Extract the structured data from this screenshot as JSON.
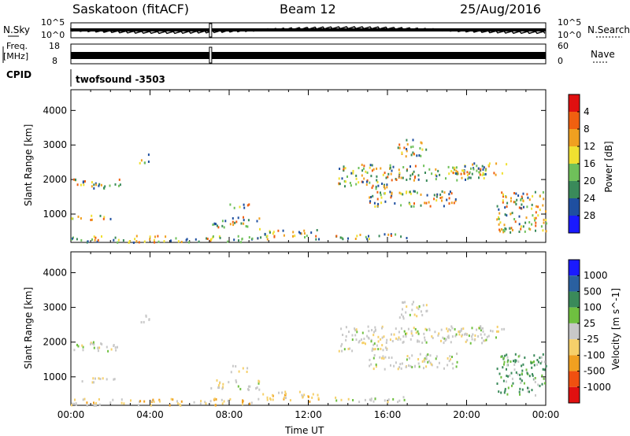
{
  "header": {
    "station": "Saskatoon (fitACF)",
    "beam": "Beam 12",
    "date": "25/Aug/2016"
  },
  "top_panels": {
    "nsky_label": "N.Sky",
    "nsky_top": "10^5",
    "nsky_bottom": "10^0",
    "nsearch_label": "N.Search",
    "nsearch_top": "10^5",
    "nsearch_bottom": "10^0",
    "freq_label_1": "Freq.",
    "freq_label_2": "[MHz]",
    "freq_top": "18",
    "freq_bottom": "8",
    "nave_label": "Nave",
    "nave_top": "60",
    "nave_bottom": "0",
    "cpid_label": "CPID",
    "cpid_text": "twofsound  -3503"
  },
  "x_axis": {
    "label": "Time UT",
    "ticks": [
      "00:00",
      "04:00",
      "08:00",
      "12:00",
      "16:00",
      "20:00",
      "00:00"
    ]
  },
  "colors": {
    "power": [
      "#1a1aff",
      "#1f4fa0",
      "#3a8a5a",
      "#6fc05a",
      "#f0e030",
      "#f0a020",
      "#f06010",
      "#e01010"
    ],
    "velocity": [
      "#e01010",
      "#f05010",
      "#f0a020",
      "#f6d06a",
      "#c8c8c8",
      "#6fc040",
      "#3a8a5a",
      "#2a60a0",
      "#1a1aff"
    ]
  },
  "chart_data": [
    {
      "type": "heatmap",
      "title": "",
      "xlabel": "",
      "ylabel": "Slant Range [km]",
      "xlim": [
        "00:00",
        "24:00"
      ],
      "ylim": [
        180,
        4600
      ],
      "y_ticks": [
        "1000",
        "2000",
        "3000",
        "4000"
      ],
      "colorbar_label": "Power [dB]",
      "colorbar_ticks": [
        "4",
        "8",
        "12",
        "16",
        "20",
        "24",
        "28"
      ],
      "colorbar_range": [
        0,
        30
      ]
    },
    {
      "type": "heatmap",
      "title": "",
      "xlabel": "Time UT",
      "ylabel": "Slant Range [km]",
      "xlim": [
        "00:00",
        "24:00"
      ],
      "ylim": [
        180,
        4600
      ],
      "y_ticks": [
        "1000",
        "2000",
        "3000",
        "4000"
      ],
      "colorbar_label": "Velocity [m s^-1]",
      "colorbar_ticks": [
        "1000",
        "500",
        "100",
        "25",
        "-25",
        "-100",
        "-500",
        "-1000"
      ],
      "colorbar_range": [
        -1000,
        1000
      ]
    }
  ]
}
